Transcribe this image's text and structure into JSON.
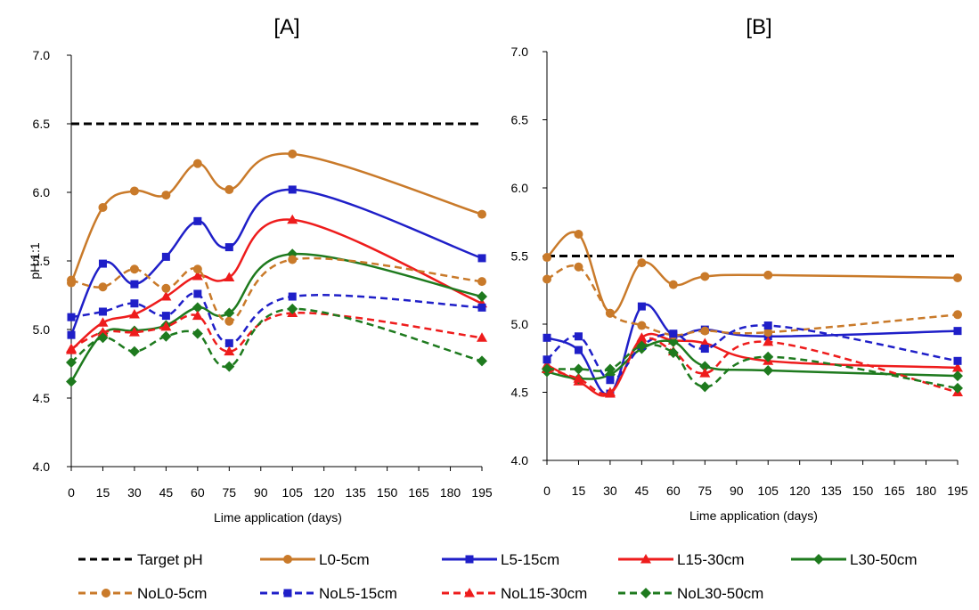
{
  "chart_data": [
    {
      "type": "line",
      "title": "[A]",
      "xlabel": "Lime application (days)",
      "ylabel": "pH 1:1",
      "ylim": [
        4.0,
        7.0
      ],
      "xlim": [
        0,
        195
      ],
      "x_ticks": [
        "0",
        "15",
        "30",
        "45",
        "60",
        "75",
        "90",
        "105",
        "120",
        "135",
        "150",
        "165",
        "180",
        "195"
      ],
      "y_ticks": [
        "4.0",
        "4.5",
        "5.0",
        "5.5",
        "6.0",
        "6.5",
        "7.0"
      ],
      "grid": false,
      "series": [
        {
          "name": "Target pH",
          "x": [
            0,
            195
          ],
          "y": [
            6.5,
            6.5
          ]
        },
        {
          "name": "L0-5cm",
          "x": [
            0,
            15,
            30,
            45,
            60,
            75,
            105,
            195
          ],
          "y": [
            5.34,
            5.89,
            6.01,
            5.98,
            6.21,
            6.02,
            6.28,
            5.84
          ]
        },
        {
          "name": "L5-15cm",
          "x": [
            0,
            15,
            30,
            45,
            60,
            75,
            105,
            195
          ],
          "y": [
            4.96,
            5.48,
            5.33,
            5.53,
            5.79,
            5.6,
            6.02,
            5.52
          ]
        },
        {
          "name": "L15-30cm",
          "x": [
            0,
            15,
            30,
            45,
            60,
            75,
            105,
            195
          ],
          "y": [
            4.85,
            5.05,
            5.11,
            5.24,
            5.39,
            5.38,
            5.8,
            5.19
          ]
        },
        {
          "name": "L30-50cm",
          "x": [
            0,
            15,
            30,
            45,
            60,
            75,
            105,
            195
          ],
          "y": [
            4.62,
            4.97,
            4.99,
            5.03,
            5.16,
            5.12,
            5.55,
            5.24
          ]
        },
        {
          "name": "NoL0-5cm",
          "x": [
            0,
            15,
            30,
            45,
            60,
            75,
            105,
            195
          ],
          "y": [
            5.36,
            5.31,
            5.44,
            5.3,
            5.44,
            5.06,
            5.51,
            5.35
          ]
        },
        {
          "name": "NoL5-15cm",
          "x": [
            0,
            15,
            30,
            45,
            60,
            75,
            105,
            195
          ],
          "y": [
            5.09,
            5.13,
            5.19,
            5.1,
            5.26,
            4.9,
            5.24,
            5.16
          ]
        },
        {
          "name": "NoL15-30cm",
          "x": [
            0,
            15,
            30,
            45,
            60,
            75,
            105,
            195
          ],
          "y": [
            4.86,
            4.98,
            4.98,
            5.02,
            5.1,
            4.84,
            5.12,
            4.94
          ]
        },
        {
          "name": "NoL30-50cm",
          "x": [
            0,
            15,
            30,
            45,
            60,
            75,
            105,
            195
          ],
          "y": [
            4.76,
            4.94,
            4.84,
            4.95,
            4.97,
            4.73,
            5.15,
            4.77
          ]
        }
      ]
    },
    {
      "type": "line",
      "title": "[B]",
      "xlabel": "Lime application (days)",
      "ylabel": "",
      "ylim": [
        4.0,
        7.0
      ],
      "xlim": [
        0,
        195
      ],
      "x_ticks": [
        "0",
        "15",
        "30",
        "45",
        "60",
        "75",
        "90",
        "105",
        "120",
        "135",
        "150",
        "165",
        "180",
        "195"
      ],
      "y_ticks": [
        "4.0",
        "4.5",
        "5.0",
        "5.5",
        "6.0",
        "6.5",
        "7.0"
      ],
      "grid": false,
      "series": [
        {
          "name": "Target pH",
          "x": [
            0,
            195
          ],
          "y": [
            5.5,
            5.5
          ]
        },
        {
          "name": "L0-5cm",
          "x": [
            0,
            15,
            30,
            45,
            60,
            75,
            105,
            195
          ],
          "y": [
            5.49,
            5.66,
            5.08,
            5.45,
            5.29,
            5.35,
            5.36,
            5.34
          ]
        },
        {
          "name": "L5-15cm",
          "x": [
            0,
            15,
            30,
            45,
            60,
            75,
            105,
            195
          ],
          "y": [
            4.9,
            4.81,
            4.49,
            5.13,
            4.92,
            4.96,
            4.91,
            4.95
          ]
        },
        {
          "name": "L15-30cm",
          "x": [
            0,
            15,
            30,
            45,
            60,
            75,
            105,
            195
          ],
          "y": [
            4.7,
            4.58,
            4.49,
            4.9,
            4.88,
            4.86,
            4.73,
            4.68
          ]
        },
        {
          "name": "L30-50cm",
          "x": [
            0,
            15,
            30,
            45,
            60,
            75,
            105,
            195
          ],
          "y": [
            4.65,
            4.6,
            4.63,
            4.82,
            4.87,
            4.69,
            4.66,
            4.62
          ]
        },
        {
          "name": "NoL0-5cm",
          "x": [
            0,
            15,
            30,
            45,
            60,
            75,
            105,
            195
          ],
          "y": [
            5.33,
            5.42,
            5.08,
            4.99,
            4.92,
            4.95,
            4.94,
            5.07
          ]
        },
        {
          "name": "NoL5-15cm",
          "x": [
            0,
            15,
            30,
            45,
            60,
            75,
            105,
            195
          ],
          "y": [
            4.74,
            4.91,
            4.59,
            4.84,
            4.93,
            4.82,
            4.99,
            4.73
          ]
        },
        {
          "name": "NoL15-30cm",
          "x": [
            0,
            15,
            30,
            45,
            60,
            75,
            105,
            195
          ],
          "y": [
            4.67,
            4.6,
            4.5,
            4.88,
            4.8,
            4.64,
            4.87,
            4.5
          ]
        },
        {
          "name": "NoL30-50cm",
          "x": [
            0,
            15,
            30,
            45,
            60,
            75,
            105,
            195
          ],
          "y": [
            4.67,
            4.67,
            4.67,
            4.84,
            4.79,
            4.54,
            4.76,
            4.53
          ]
        }
      ]
    }
  ],
  "legend": {
    "placement": "bottom",
    "entries": [
      {
        "label": "Target pH",
        "color": "#000000",
        "dash": true,
        "marker": "none"
      },
      {
        "label": "L0-5cm",
        "color": "#C97A2A",
        "dash": false,
        "marker": "circle"
      },
      {
        "label": "L5-15cm",
        "color": "#1F1FC8",
        "dash": false,
        "marker": "square"
      },
      {
        "label": "L15-30cm",
        "color": "#EE1C1C",
        "dash": false,
        "marker": "triangle"
      },
      {
        "label": "L30-50cm",
        "color": "#1E7A1E",
        "dash": false,
        "marker": "diamond"
      },
      {
        "label": "NoL0-5cm",
        "color": "#C97A2A",
        "dash": true,
        "marker": "circle"
      },
      {
        "label": "NoL5-15cm",
        "color": "#1F1FC8",
        "dash": true,
        "marker": "square"
      },
      {
        "label": "NoL15-30cm",
        "color": "#EE1C1C",
        "dash": true,
        "marker": "triangle"
      },
      {
        "label": "NoL30-50cm",
        "color": "#1E7A1E",
        "dash": true,
        "marker": "diamond"
      }
    ]
  }
}
